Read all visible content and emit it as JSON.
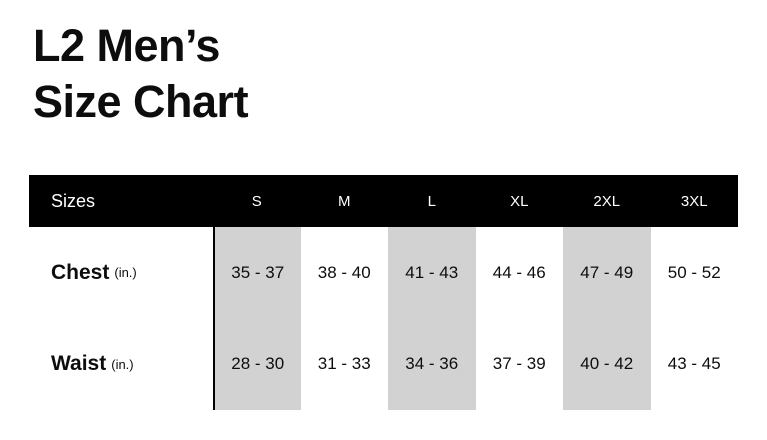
{
  "title": {
    "line1": "L2 Men’s",
    "line2": "Size Chart"
  },
  "table": {
    "header": {
      "sizes_label": "Sizes",
      "columns": [
        "S",
        "M",
        "L",
        "XL",
        "2XL",
        "3XL"
      ]
    },
    "rows": [
      {
        "label": "Chest",
        "unit": "(in.)",
        "values": [
          "35 - 37",
          "38 - 40",
          "41 - 43",
          "44 - 46",
          "47 - 49",
          "50 - 52"
        ]
      },
      {
        "label": "Waist",
        "unit": "(in.)",
        "values": [
          "28 - 30",
          "31 - 33",
          "34 - 36",
          "37 - 39",
          "40 - 42",
          "43 - 45"
        ]
      }
    ],
    "shaded_columns": [
      "S",
      "L",
      "2XL"
    ]
  },
  "colors": {
    "header_bg": "#000000",
    "header_text": "#ffffff",
    "column_shade": "#d2d2d2",
    "text": "#0d0d0d",
    "background": "#ffffff"
  },
  "chart_data": {
    "type": "table",
    "title": "L2 Men’s Size Chart",
    "columns": [
      "Sizes",
      "S",
      "M",
      "L",
      "XL",
      "2XL",
      "3XL"
    ],
    "rows": [
      [
        "Chest (in.)",
        "35 - 37",
        "38 - 40",
        "41 - 43",
        "44 - 46",
        "47 - 49",
        "50 - 52"
      ],
      [
        "Waist (in.)",
        "28 - 30",
        "31 - 33",
        "34 - 36",
        "37 - 39",
        "40 - 42",
        "43 - 45"
      ]
    ],
    "shaded_columns": [
      "S",
      "L",
      "2XL"
    ],
    "legend": "off",
    "grid": "off"
  }
}
